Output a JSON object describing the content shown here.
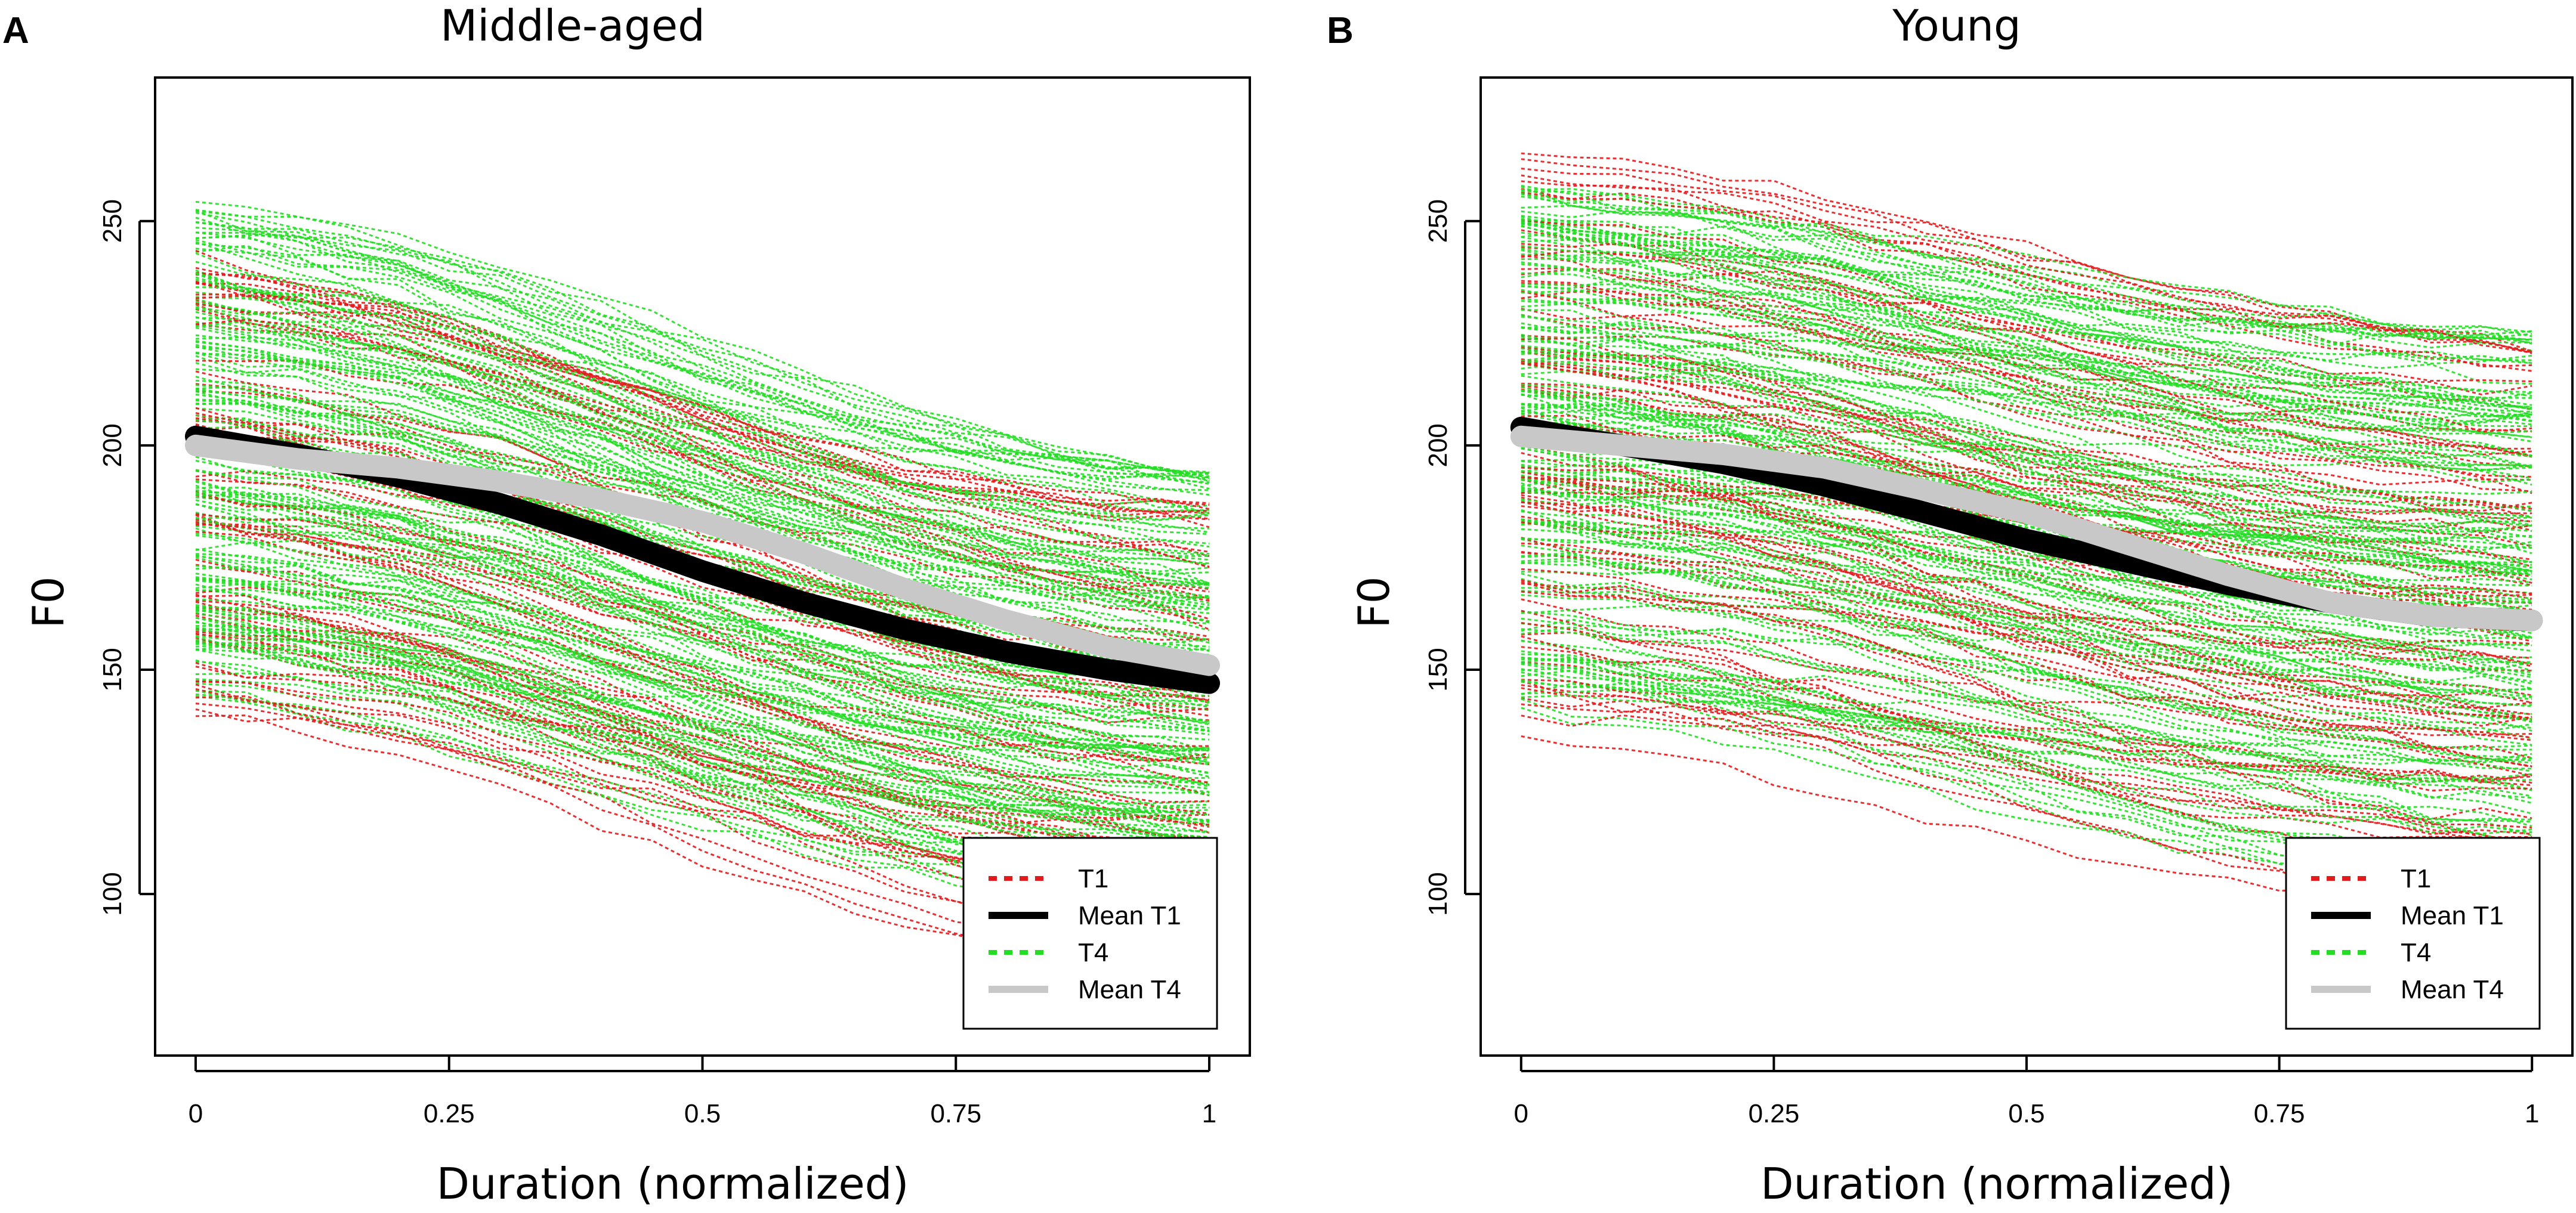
{
  "chart_data": [
    {
      "type": "line",
      "panel_label": "A",
      "title": "Middle-aged",
      "xlabel": "Duration (normalized)",
      "ylabel": "F0",
      "xlim": [
        -0.04,
        1.04
      ],
      "ylim": [
        64,
        282
      ],
      "x_ticks": [
        0,
        0.25,
        0.5,
        0.75,
        1
      ],
      "x_tick_labels": [
        "0",
        "0.25",
        "0.5",
        "0.75",
        "1"
      ],
      "y_ticks": [
        100,
        150,
        200,
        250
      ],
      "y_tick_labels": [
        "100",
        "150",
        "200",
        "250"
      ],
      "legend": {
        "position": "bottom-right",
        "entries": [
          {
            "label": "T1",
            "style": "dotted",
            "color": "#e31a1c"
          },
          {
            "label": "Mean T1",
            "style": "solid",
            "color": "#000000"
          },
          {
            "label": "T4",
            "style": "dotted",
            "color": "#22dd22"
          },
          {
            "label": "Mean T4",
            "style": "solid",
            "color": "#c8c8c8"
          }
        ]
      },
      "series": [
        {
          "name": "Mean T1",
          "x": [
            0,
            0.1,
            0.2,
            0.3,
            0.4,
            0.5,
            0.6,
            0.7,
            0.8,
            0.9,
            1.0
          ],
          "y": [
            202,
            198,
            193,
            187,
            180,
            172,
            165,
            159,
            154,
            150,
            147
          ]
        },
        {
          "name": "Mean T4",
          "x": [
            0,
            0.1,
            0.2,
            0.3,
            0.4,
            0.5,
            0.6,
            0.7,
            0.8,
            0.9,
            1.0
          ],
          "y": [
            200,
            197,
            195,
            192,
            188,
            183,
            176,
            168,
            161,
            155,
            151
          ]
        },
        {
          "name": "T1",
          "summary": "individual contours",
          "start_range": [
            136,
            243
          ],
          "end_range": [
            84,
            186
          ],
          "count": 70
        },
        {
          "name": "T4",
          "summary": "individual contours",
          "start_range": [
            143,
            254
          ],
          "end_range": [
            98,
            193
          ],
          "count": 160
        }
      ]
    },
    {
      "type": "line",
      "panel_label": "B",
      "title": "Young",
      "xlabel": "Duration (normalized)",
      "ylabel": "F0",
      "xlim": [
        -0.04,
        1.04
      ],
      "ylim": [
        64,
        282
      ],
      "x_ticks": [
        0,
        0.25,
        0.5,
        0.75,
        1
      ],
      "x_tick_labels": [
        "0",
        "0.25",
        "0.5",
        "0.75",
        "1"
      ],
      "y_ticks": [
        100,
        150,
        200,
        250
      ],
      "y_tick_labels": [
        "100",
        "150",
        "200",
        "250"
      ],
      "legend": {
        "position": "bottom-right",
        "entries": [
          {
            "label": "T1",
            "style": "dotted",
            "color": "#e31a1c"
          },
          {
            "label": "Mean T1",
            "style": "solid",
            "color": "#000000"
          },
          {
            "label": "T4",
            "style": "dotted",
            "color": "#22dd22"
          },
          {
            "label": "Mean T4",
            "style": "solid",
            "color": "#c8c8c8"
          }
        ]
      },
      "series": [
        {
          "name": "Mean T1",
          "x": [
            0,
            0.1,
            0.2,
            0.3,
            0.4,
            0.5,
            0.6,
            0.7,
            0.8,
            0.9,
            1.0
          ],
          "y": [
            204,
            200,
            196,
            191,
            185,
            179,
            174,
            169,
            165,
            162,
            161
          ]
        },
        {
          "name": "Mean T4",
          "x": [
            0,
            0.1,
            0.2,
            0.3,
            0.4,
            0.5,
            0.6,
            0.7,
            0.8,
            0.9,
            1.0
          ],
          "y": [
            202,
            200,
            198,
            195,
            190,
            185,
            178,
            171,
            165,
            162,
            161
          ]
        },
        {
          "name": "T1",
          "summary": "individual contours",
          "start_range": [
            135,
            266
          ],
          "end_range": [
            98,
            222
          ],
          "count": 80
        },
        {
          "name": "T4",
          "summary": "individual contours",
          "start_range": [
            140,
            258
          ],
          "end_range": [
            103,
            224
          ],
          "count": 170
        }
      ]
    }
  ],
  "colors": {
    "t1": "#e31a1c",
    "t4": "#22dd22",
    "mean_t1": "#000000",
    "mean_t4": "#c8c8c8",
    "frame": "#000000",
    "background": "#ffffff"
  }
}
